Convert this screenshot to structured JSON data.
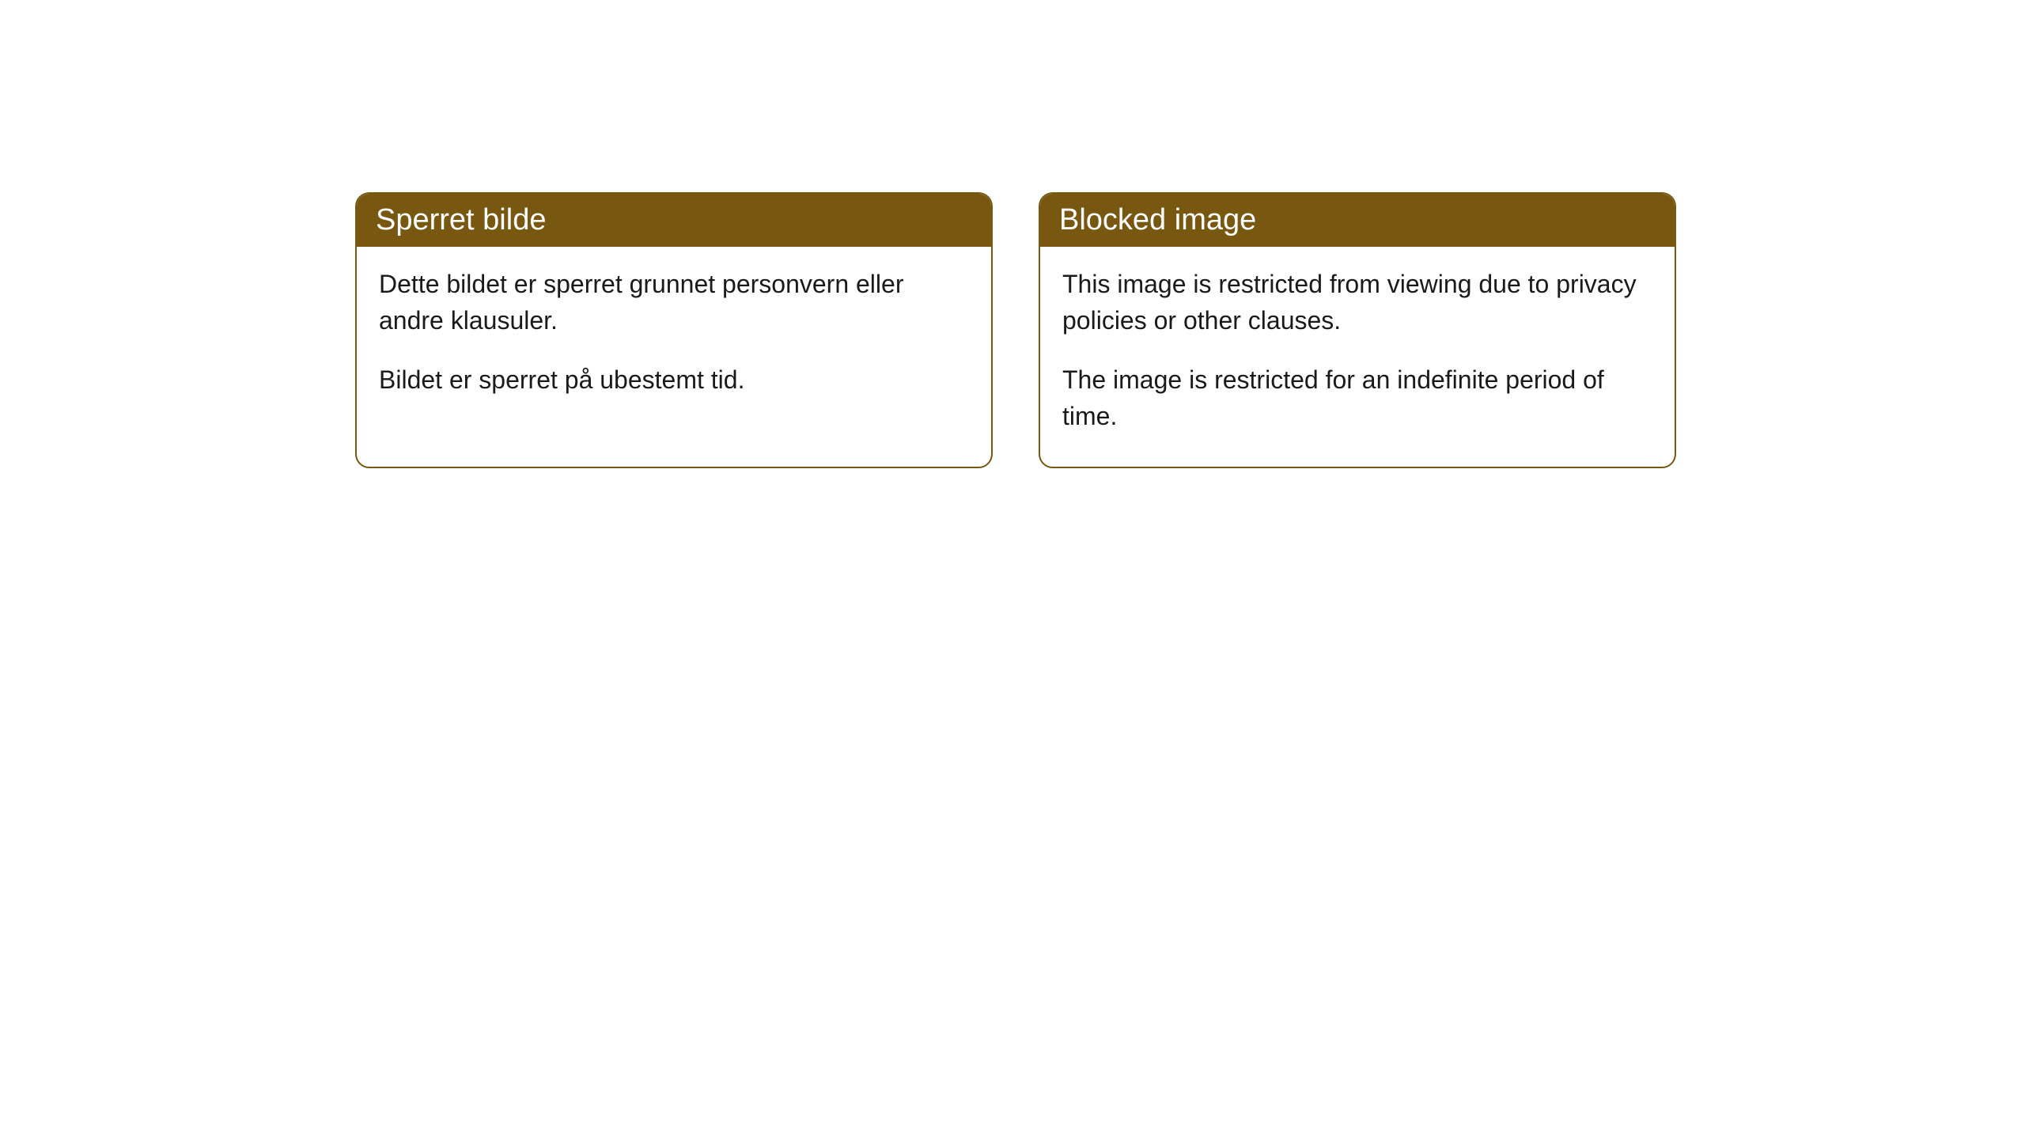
{
  "cards": [
    {
      "title": "Sperret bilde",
      "paragraph1": "Dette bildet er sperret grunnet personvern eller andre klausuler.",
      "paragraph2": "Bildet er sperret på ubestemt tid."
    },
    {
      "title": "Blocked image",
      "paragraph1": "This image is restricted from viewing due to privacy policies or other clauses.",
      "paragraph2": "The image is restricted for an indefinite period of time."
    }
  ],
  "styling": {
    "header_bg_color": "#785710",
    "header_text_color": "#ffffff",
    "border_color": "#785710",
    "body_bg_color": "#ffffff",
    "body_text_color": "#1a1a1a",
    "border_radius": 18,
    "header_fontsize": 38,
    "body_fontsize": 32
  }
}
